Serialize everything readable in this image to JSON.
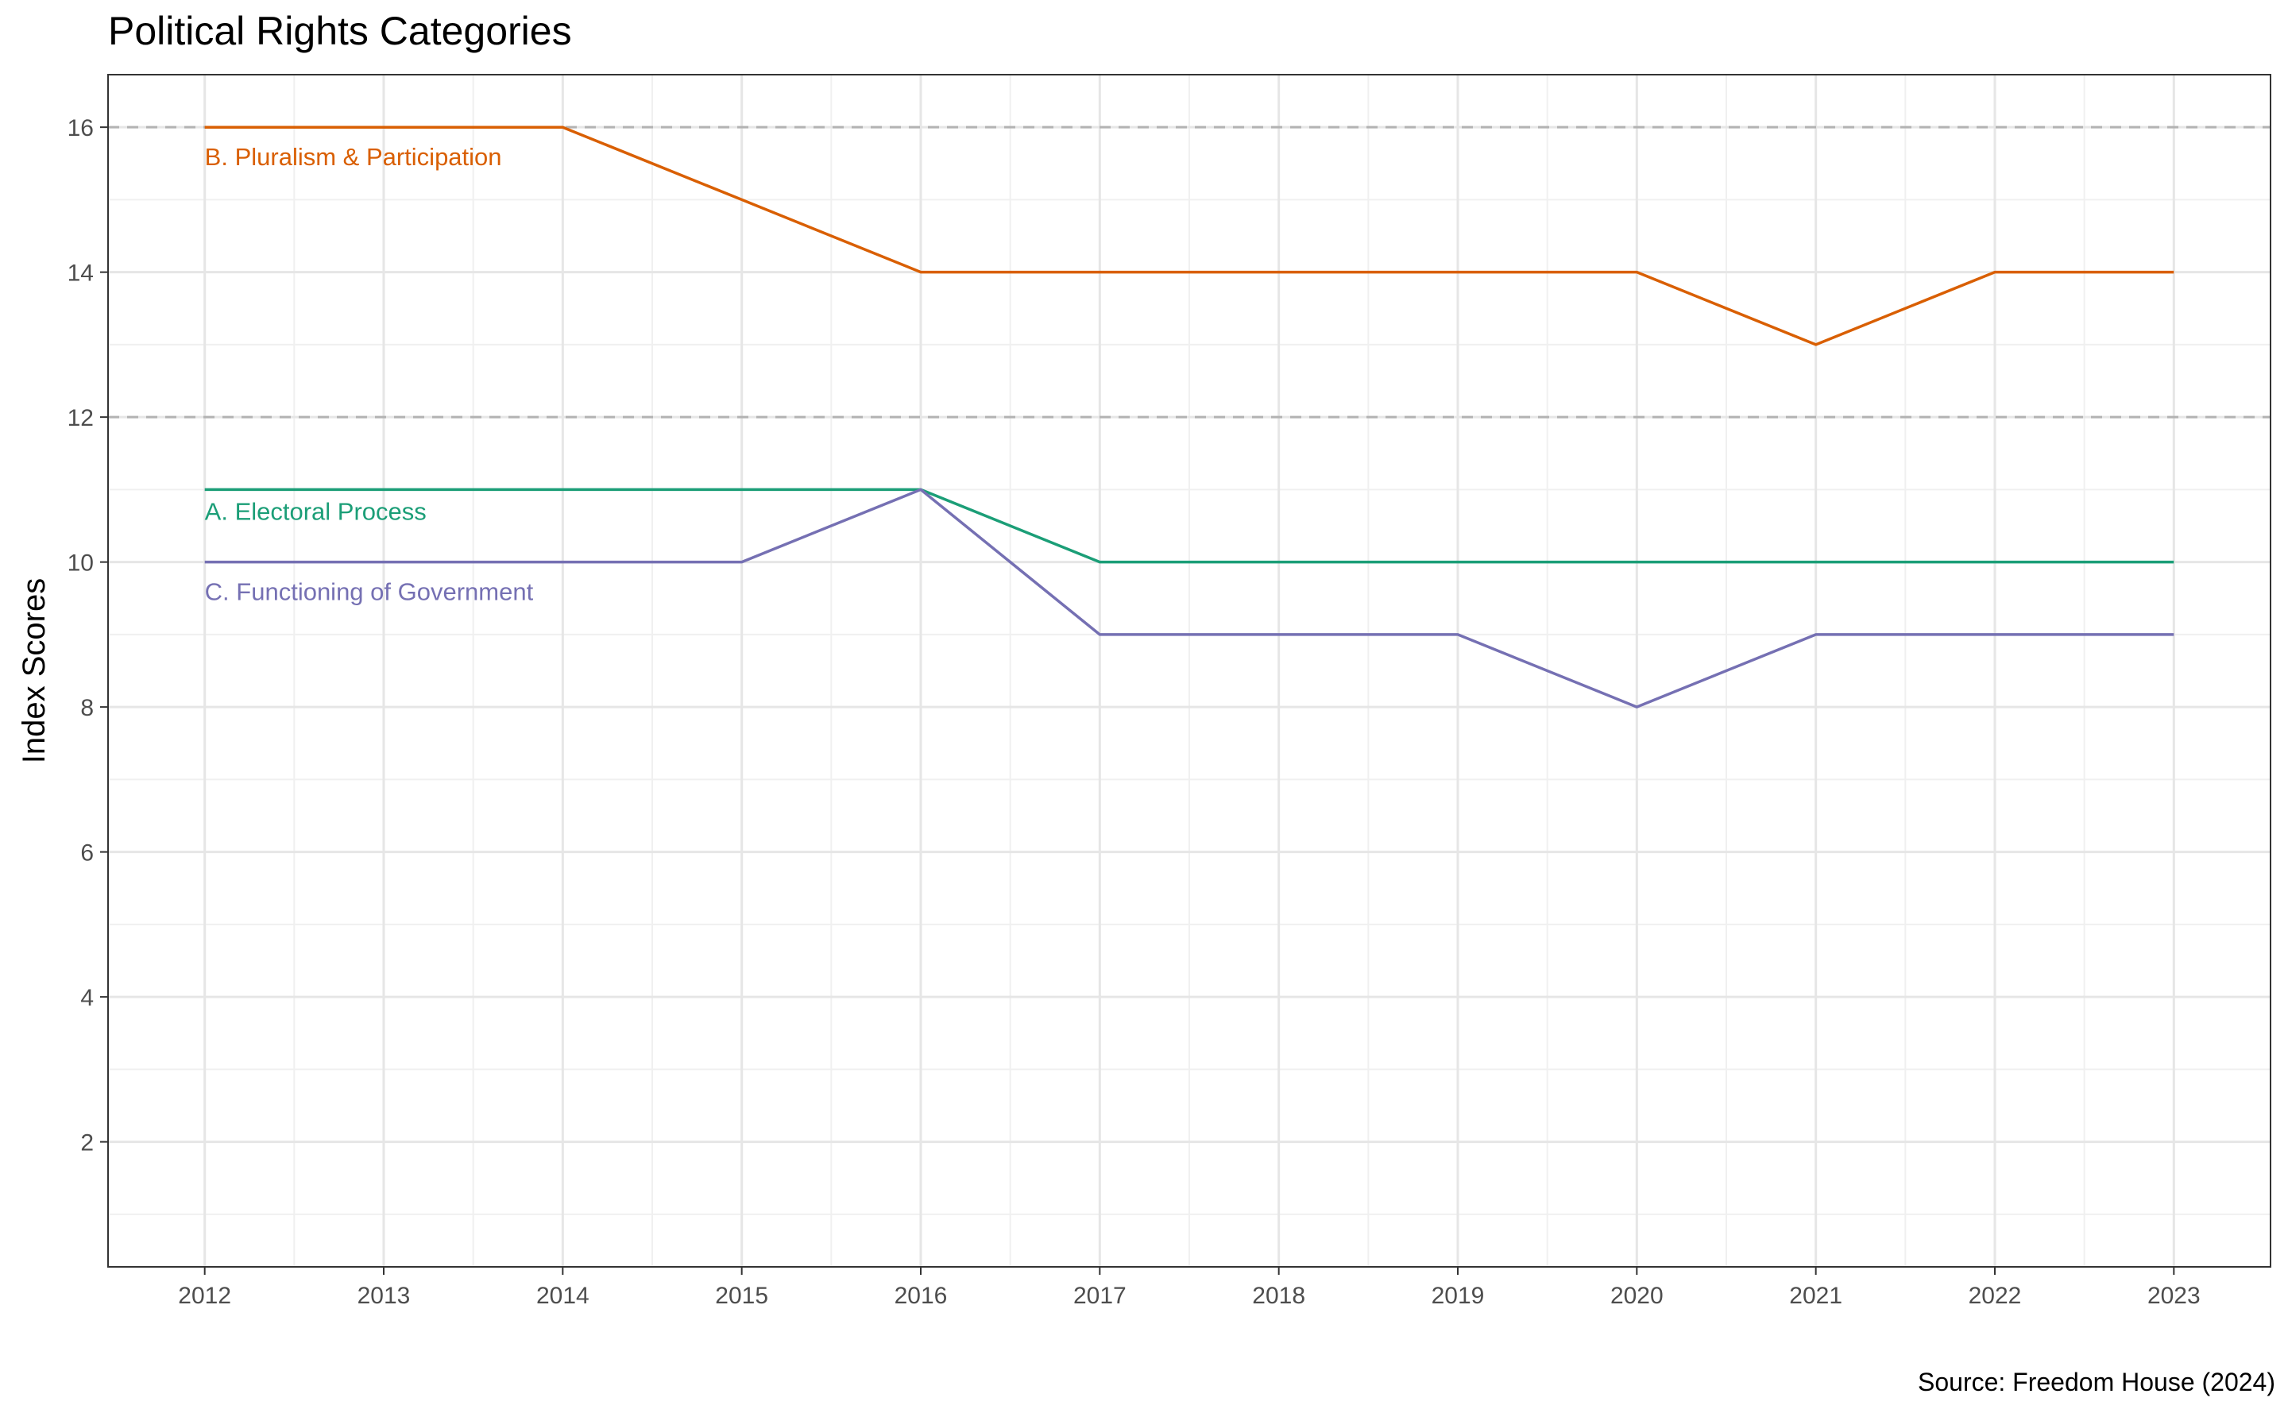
{
  "chart_data": {
    "type": "line",
    "title": "Political Rights Categories",
    "xlabel": "",
    "ylabel": "Index Scores",
    "caption": "Source: Freedom House (2024)",
    "x": [
      2012,
      2013,
      2014,
      2015,
      2016,
      2017,
      2018,
      2019,
      2020,
      2021,
      2022,
      2023
    ],
    "xlim": [
      2011.46,
      2023.54
    ],
    "ylim": [
      0.275,
      16.725
    ],
    "y_ticks": [
      2,
      4,
      6,
      8,
      10,
      12,
      14,
      16
    ],
    "grid": true,
    "legend": "direct labels near left of each line",
    "reference_lines": [
      {
        "y": 16,
        "style": "dashed",
        "color": "#b3b3b3"
      },
      {
        "y": 12,
        "style": "dashed",
        "color": "#b3b3b3"
      }
    ],
    "series": [
      {
        "name": "B. Pluralism & Participation",
        "color": "#D95F02",
        "values": [
          16,
          16,
          16,
          15,
          14,
          14,
          14,
          14,
          14,
          13,
          14,
          14
        ]
      },
      {
        "name": "A. Electoral Process",
        "color": "#1B9E77",
        "values": [
          11,
          11,
          11,
          11,
          11,
          10,
          10,
          10,
          10,
          10,
          10,
          10
        ]
      },
      {
        "name": "C. Functioning of Government",
        "color": "#7570B3",
        "values": [
          10,
          10,
          10,
          10,
          11,
          9,
          9,
          9,
          8,
          9,
          9,
          9
        ]
      }
    ]
  }
}
